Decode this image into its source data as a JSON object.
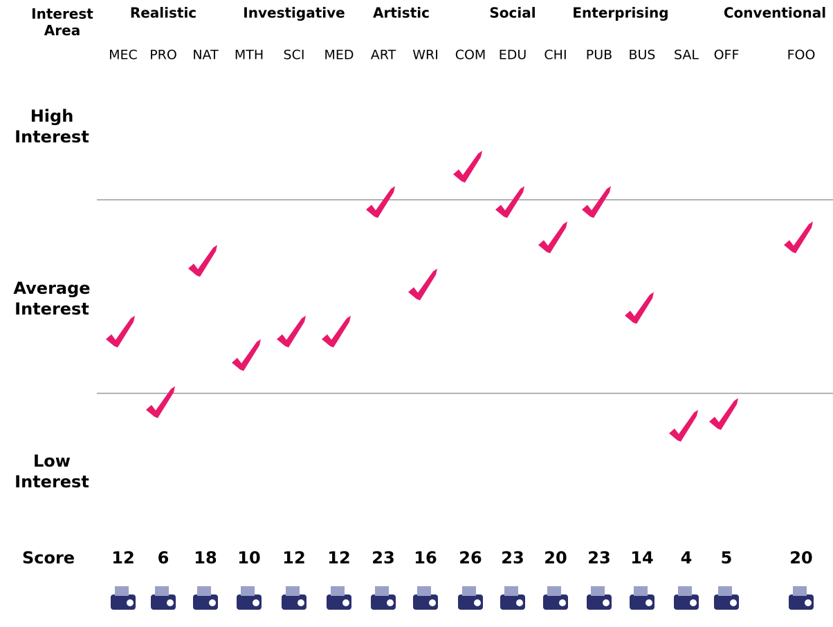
{
  "chart_data": {
    "type": "scatter",
    "x_label": "Interest Area",
    "score_label": "Score",
    "groups": [
      "Realistic",
      "Investigative",
      "Artistic",
      "Social",
      "Enterprising",
      "Conventional"
    ],
    "row_labels": [
      "High Interest",
      "Average Interest",
      "Low Interest"
    ],
    "categories": [
      "MEC",
      "PRO",
      "NAT",
      "MTH",
      "SCI",
      "MED",
      "ART",
      "WRI",
      "COM",
      "EDU",
      "CHI",
      "PUB",
      "BUS",
      "SAL",
      "OFF",
      "FOO"
    ],
    "values": [
      12,
      6,
      18,
      10,
      12,
      12,
      23,
      16,
      26,
      23,
      20,
      23,
      14,
      4,
      5,
      20
    ],
    "color": "#e8196a",
    "ylim": [
      0,
      30
    ]
  }
}
